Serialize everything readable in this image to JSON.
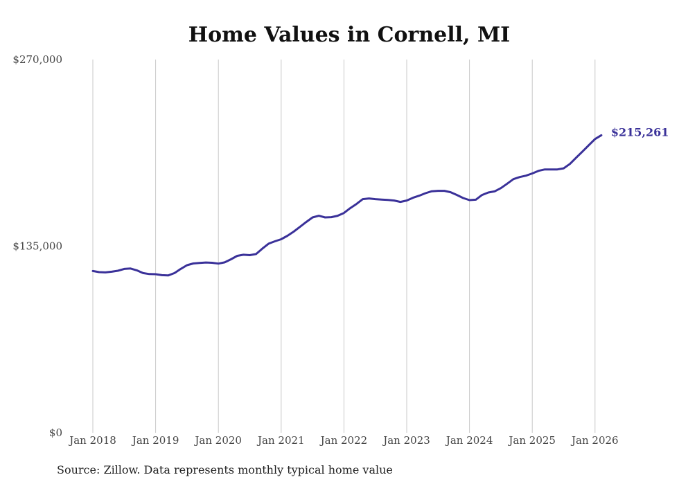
{
  "chart_data": {
    "type": "line",
    "title": "Home Values in Cornell, MI",
    "source": "Source: Zillow. Data represents monthly typical home value",
    "ylim": [
      0,
      270000
    ],
    "y_ticks": [
      {
        "value": 0,
        "label": "$0"
      },
      {
        "value": 135000,
        "label": "$135,000"
      },
      {
        "value": 270000,
        "label": "$270,000"
      }
    ],
    "x_range": [
      2018.0,
      2026.167
    ],
    "x_ticks": [
      {
        "value": 2018,
        "label": "Jan 2018"
      },
      {
        "value": 2019,
        "label": "Jan 2019"
      },
      {
        "value": 2020,
        "label": "Jan 2020"
      },
      {
        "value": 2021,
        "label": "Jan 2021"
      },
      {
        "value": 2022,
        "label": "Jan 2022"
      },
      {
        "value": 2023,
        "label": "Jan 2023"
      },
      {
        "value": 2024,
        "label": "Jan 2024"
      },
      {
        "value": 2025,
        "label": "Jan 2025"
      },
      {
        "value": 2026,
        "label": "Jan 2026"
      }
    ],
    "grid": "vertical",
    "series": [
      {
        "name": "Typical home value",
        "color": "#3a3199",
        "end_label": "$215,261",
        "points": [
          [
            2018.0,
            117000
          ],
          [
            2018.1,
            116200
          ],
          [
            2018.2,
            116000
          ],
          [
            2018.3,
            116500
          ],
          [
            2018.4,
            117200
          ],
          [
            2018.5,
            118500
          ],
          [
            2018.6,
            118800
          ],
          [
            2018.7,
            117500
          ],
          [
            2018.8,
            115500
          ],
          [
            2018.9,
            114800
          ],
          [
            2019.0,
            114700
          ],
          [
            2019.1,
            114000
          ],
          [
            2019.2,
            113800
          ],
          [
            2019.3,
            115500
          ],
          [
            2019.4,
            118500
          ],
          [
            2019.5,
            121200
          ],
          [
            2019.6,
            122500
          ],
          [
            2019.7,
            122900
          ],
          [
            2019.8,
            123200
          ],
          [
            2019.9,
            123000
          ],
          [
            2020.0,
            122400
          ],
          [
            2020.1,
            123300
          ],
          [
            2020.2,
            125500
          ],
          [
            2020.3,
            128000
          ],
          [
            2020.4,
            128800
          ],
          [
            2020.5,
            128500
          ],
          [
            2020.6,
            129300
          ],
          [
            2020.7,
            133200
          ],
          [
            2020.8,
            136800
          ],
          [
            2020.9,
            138500
          ],
          [
            2021.0,
            140000
          ],
          [
            2021.1,
            142500
          ],
          [
            2021.2,
            145500
          ],
          [
            2021.3,
            149000
          ],
          [
            2021.4,
            152500
          ],
          [
            2021.5,
            155800
          ],
          [
            2021.6,
            157000
          ],
          [
            2021.7,
            155800
          ],
          [
            2021.8,
            156000
          ],
          [
            2021.9,
            157000
          ],
          [
            2022.0,
            159000
          ],
          [
            2022.1,
            162500
          ],
          [
            2022.2,
            165500
          ],
          [
            2022.3,
            169000
          ],
          [
            2022.4,
            169500
          ],
          [
            2022.5,
            169000
          ],
          [
            2022.6,
            168700
          ],
          [
            2022.7,
            168400
          ],
          [
            2022.8,
            168000
          ],
          [
            2022.9,
            167000
          ],
          [
            2023.0,
            168000
          ],
          [
            2023.1,
            170000
          ],
          [
            2023.2,
            171500
          ],
          [
            2023.3,
            173300
          ],
          [
            2023.4,
            174700
          ],
          [
            2023.5,
            175000
          ],
          [
            2023.6,
            175000
          ],
          [
            2023.7,
            174000
          ],
          [
            2023.8,
            172000
          ],
          [
            2023.9,
            169800
          ],
          [
            2024.0,
            168300
          ],
          [
            2024.1,
            168600
          ],
          [
            2024.2,
            172000
          ],
          [
            2024.3,
            173800
          ],
          [
            2024.4,
            174600
          ],
          [
            2024.5,
            177000
          ],
          [
            2024.6,
            180200
          ],
          [
            2024.7,
            183500
          ],
          [
            2024.8,
            185000
          ],
          [
            2024.9,
            186000
          ],
          [
            2025.0,
            187600
          ],
          [
            2025.1,
            189500
          ],
          [
            2025.2,
            190500
          ],
          [
            2025.3,
            190500
          ],
          [
            2025.4,
            190500
          ],
          [
            2025.5,
            191300
          ],
          [
            2025.6,
            194500
          ],
          [
            2025.7,
            199000
          ],
          [
            2025.8,
            203500
          ],
          [
            2025.9,
            208000
          ],
          [
            2026.0,
            212500
          ],
          [
            2026.1,
            215261
          ]
        ]
      }
    ]
  }
}
